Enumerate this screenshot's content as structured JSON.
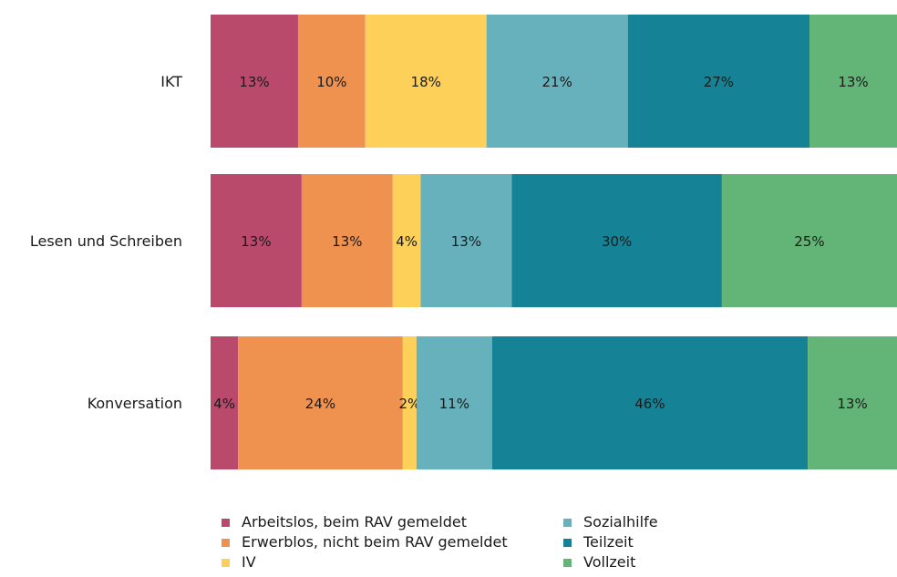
{
  "chart_data": {
    "type": "bar",
    "orientation": "horizontal",
    "stacked": true,
    "percent": true,
    "title": "",
    "xlabel": "",
    "ylabel": "",
    "categories": [
      "IKT",
      "Lesen und Schreiben",
      "Konversation"
    ],
    "series": [
      {
        "name": "Arbeitslos, beim RAV gemeldet",
        "color": "#b94a6b",
        "values": [
          13,
          13,
          4
        ]
      },
      {
        "name": "Erwerblos, nicht beim RAV gemeldet",
        "color": "#ef914f",
        "values": [
          10,
          13,
          24
        ]
      },
      {
        "name": "IV",
        "color": "#fdd05a",
        "values": [
          18,
          4,
          2
        ]
      },
      {
        "name": "Sozialhilfe",
        "color": "#67b1bd",
        "values": [
          21,
          13,
          11
        ]
      },
      {
        "name": "Teilzeit",
        "color": "#158295",
        "values": [
          27,
          30,
          46
        ]
      },
      {
        "name": "Vollzeit",
        "color": "#62b577",
        "values": [
          13,
          25,
          13
        ]
      }
    ],
    "data_labels": true,
    "grid": false,
    "legend": "bottom"
  }
}
